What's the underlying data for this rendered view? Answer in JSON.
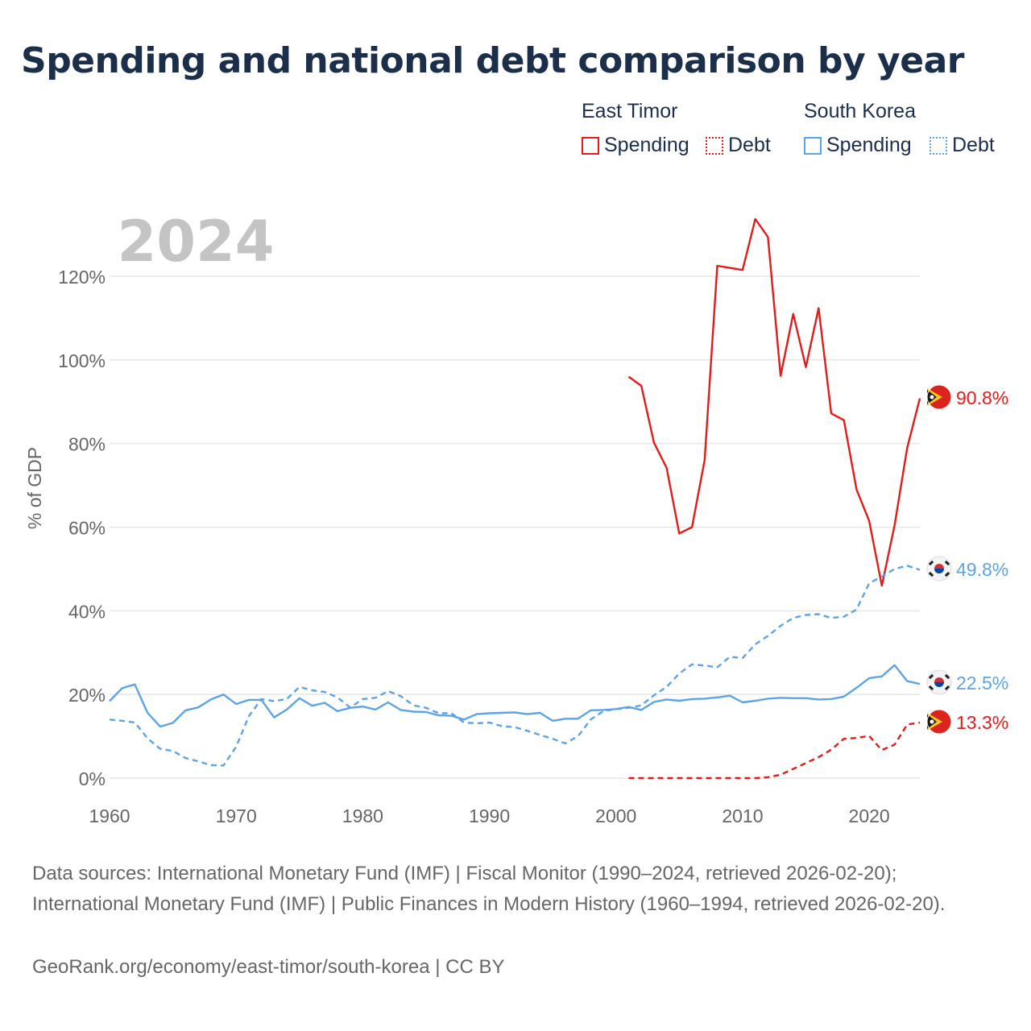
{
  "title": "Spending and national debt comparison by year",
  "legend": {
    "groups": [
      {
        "name": "East Timor",
        "items": [
          "Spending",
          "Debt"
        ],
        "color": "#e31b1b"
      },
      {
        "name": "South Korea",
        "items": [
          "Spending",
          "Debt"
        ],
        "color": "#5ea3e3"
      }
    ]
  },
  "chart_data": {
    "type": "line",
    "year_watermark": "2024",
    "ylabel": "% of GDP",
    "xlim": [
      1960,
      2024
    ],
    "ylim": [
      0,
      120
    ],
    "xticks": [
      1960,
      1970,
      1980,
      1990,
      2000,
      2010,
      2020
    ],
    "yticks": [
      0,
      20,
      40,
      60,
      80,
      100,
      120
    ],
    "ytick_labels": [
      "0%",
      "20%",
      "40%",
      "60%",
      "80%",
      "100%",
      "120%"
    ],
    "series": [
      {
        "name": "East Timor Spending",
        "country": "East Timor",
        "metric": "Spending",
        "color": "#e31b1b",
        "style": "solid",
        "end_label": "90.8%",
        "x": [
          2001,
          2002,
          2003,
          2004,
          2005,
          2006,
          2007,
          2008,
          2009,
          2010,
          2011,
          2012,
          2013,
          2014,
          2015,
          2016,
          2017,
          2018,
          2019,
          2020,
          2021,
          2022,
          2023,
          2024
        ],
        "y": [
          96,
          93.8,
          80.2,
          74.2,
          58.5,
          60,
          76,
          122.5,
          122,
          121.5,
          133.7,
          129.4,
          96.2,
          111,
          98.3,
          112.4,
          87.2,
          85.6,
          69,
          61.5,
          46,
          60.4,
          79,
          90.8
        ]
      },
      {
        "name": "East Timor Debt",
        "country": "East Timor",
        "metric": "Debt",
        "color": "#e31b1b",
        "style": "dashed",
        "end_label": "13.3%",
        "x": [
          2001,
          2002,
          2003,
          2004,
          2005,
          2006,
          2007,
          2008,
          2009,
          2010,
          2011,
          2012,
          2013,
          2014,
          2015,
          2016,
          2017,
          2018,
          2019,
          2020,
          2021,
          2022,
          2023,
          2024
        ],
        "y": [
          0,
          0,
          0,
          0,
          0,
          0,
          0,
          0,
          0,
          0,
          0,
          0.2,
          0.8,
          2.2,
          3.6,
          5,
          6.8,
          9.4,
          9.6,
          10.1,
          6.7,
          8,
          12.8,
          13.3
        ]
      },
      {
        "name": "South Korea Spending",
        "country": "South Korea",
        "metric": "Spending",
        "color": "#5ea3e3",
        "style": "solid",
        "end_label": "22.5%",
        "x": [
          1960,
          1961,
          1962,
          1963,
          1964,
          1965,
          1966,
          1967,
          1968,
          1969,
          1970,
          1971,
          1972,
          1973,
          1974,
          1975,
          1976,
          1977,
          1978,
          1979,
          1980,
          1981,
          1982,
          1983,
          1984,
          1985,
          1986,
          1987,
          1988,
          1989,
          1990,
          1991,
          1992,
          1993,
          1994,
          1995,
          1996,
          1997,
          1998,
          1999,
          2000,
          2001,
          2002,
          2003,
          2004,
          2005,
          2006,
          2007,
          2008,
          2009,
          2010,
          2011,
          2012,
          2013,
          2014,
          2015,
          2016,
          2017,
          2018,
          2019,
          2020,
          2021,
          2022,
          2023,
          2024
        ],
        "y": [
          18.4,
          21.5,
          22.4,
          15.6,
          12.3,
          13.2,
          16.2,
          16.9,
          18.8,
          20,
          17.7,
          18.7,
          18.7,
          14.5,
          16.4,
          19.1,
          17.3,
          18,
          16,
          16.8,
          17.1,
          16.4,
          18.1,
          16.3,
          15.9,
          15.8,
          15,
          14.9,
          14,
          15.3,
          15.5,
          15.6,
          15.7,
          15.3,
          15.6,
          13.7,
          14.2,
          14.2,
          16.2,
          16.3,
          16.5,
          17,
          16.3,
          18.2,
          18.8,
          18.5,
          18.9,
          19,
          19.3,
          19.7,
          18.1,
          18.5,
          19,
          19.2,
          19.1,
          19.1,
          18.8,
          18.9,
          19.5,
          21.6,
          23.9,
          24.3,
          27,
          23.2,
          22.5
        ]
      },
      {
        "name": "South Korea Debt",
        "country": "South Korea",
        "metric": "Debt",
        "color": "#5ea3e3",
        "style": "dashed",
        "end_label": "49.8%",
        "x": [
          1960,
          1961,
          1962,
          1963,
          1964,
          1965,
          1966,
          1967,
          1968,
          1969,
          1970,
          1971,
          1972,
          1973,
          1974,
          1975,
          1976,
          1977,
          1978,
          1979,
          1980,
          1981,
          1982,
          1983,
          1984,
          1985,
          1986,
          1987,
          1988,
          1989,
          1990,
          1991,
          1992,
          1993,
          1994,
          1995,
          1996,
          1997,
          1998,
          1999,
          2000,
          2001,
          2002,
          2003,
          2004,
          2005,
          2006,
          2007,
          2008,
          2009,
          2010,
          2011,
          2012,
          2013,
          2014,
          2015,
          2016,
          2017,
          2018,
          2019,
          2020,
          2021,
          2022,
          2023,
          2024
        ],
        "y": [
          14,
          13.7,
          13.3,
          9.5,
          7,
          6.5,
          4.8,
          4,
          3.1,
          3,
          7.5,
          14.8,
          18.9,
          18.4,
          18.9,
          21.8,
          21,
          20.6,
          19.3,
          16.9,
          18.9,
          19.2,
          20.8,
          19.6,
          17.4,
          16.8,
          15.5,
          15.5,
          13.3,
          13.1,
          13.3,
          12.4,
          12.2,
          11.3,
          10.3,
          9.4,
          8.3,
          10,
          14,
          16,
          16.5,
          16.8,
          17.4,
          19.8,
          21.8,
          25,
          27.2,
          26.9,
          26.5,
          29,
          28.7,
          32,
          34,
          36.4,
          38.3,
          39,
          39.2,
          38.3,
          38.6,
          40.3,
          46.6,
          48.2,
          50,
          50.8,
          49.8
        ]
      }
    ]
  },
  "footer": {
    "sources": "Data sources: International Monetary Fund (IMF) | Fiscal Monitor (1990–2024, retrieved 2026-02-20); International Monetary Fund (IMF) | Public Finances in Modern History (1960–1994, retrieved 2026-02-20).",
    "attribution": "GeoRank.org/economy/east-timor/south-korea | CC BY"
  }
}
